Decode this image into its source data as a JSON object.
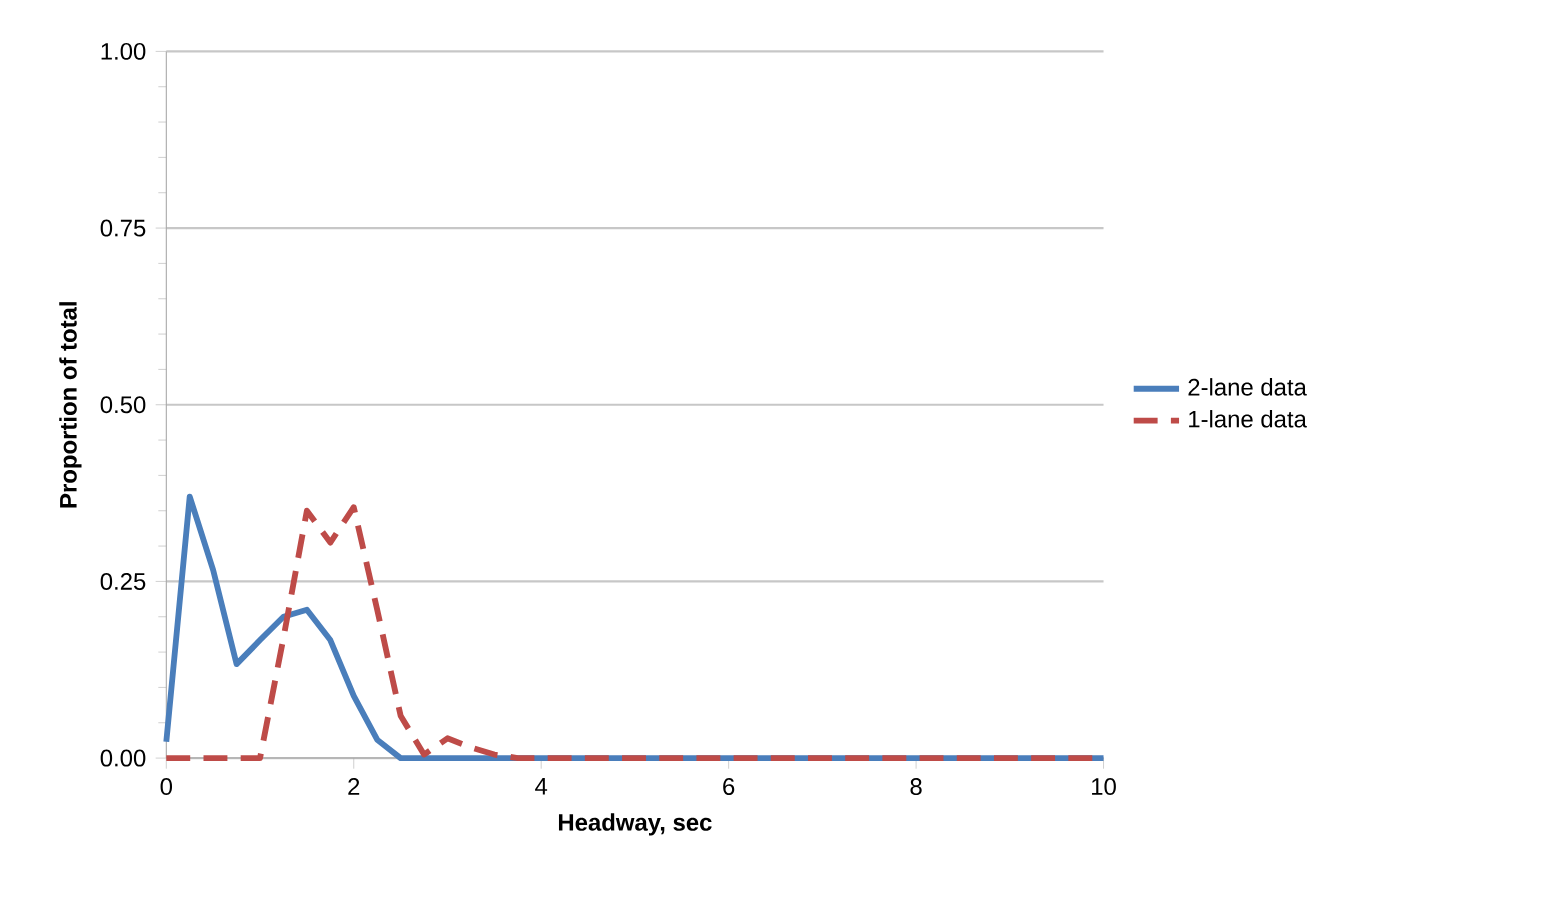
{
  "chart_data": {
    "type": "line",
    "xlabel": "Headway, sec",
    "ylabel": "Proportion of total",
    "xlim": [
      0,
      10
    ],
    "xticks": [
      0,
      2,
      4,
      6,
      8,
      10
    ],
    "ylim": [
      0,
      1
    ],
    "yticks": [
      {
        "value": 0,
        "label": "0.00"
      },
      {
        "value": 0.25,
        "label": "0.25"
      },
      {
        "value": 0.5,
        "label": "0.50"
      },
      {
        "value": 0.75,
        "label": "0.75"
      },
      {
        "value": 1,
        "label": "1.00"
      }
    ],
    "grid": "y",
    "legend": "right",
    "series": [
      {
        "name": "2-lane data",
        "color": "#4a7ebb",
        "line_style": "solid",
        "x": [
          0,
          0.25,
          0.5,
          0.75,
          1,
          1.25,
          1.5,
          1.75,
          2,
          2.25,
          2.5,
          2.75,
          3,
          3.25,
          3.5,
          3.75,
          4,
          4.25,
          4.5,
          4.75,
          5,
          5.25,
          5.5,
          5.75,
          6,
          6.25,
          6.5,
          6.75,
          7,
          7.25,
          7.5,
          7.75,
          8,
          8.25,
          8.5,
          8.75,
          9,
          9.25,
          9.5,
          9.75,
          10
        ],
        "values": [
          0.023,
          0.37,
          0.266,
          0.133,
          0.167,
          0.2,
          0.21,
          0.167,
          0.088,
          0.026,
          0,
          0,
          0,
          0,
          0,
          0,
          0,
          0,
          0,
          0,
          0,
          0,
          0,
          0,
          0,
          0,
          0,
          0,
          0,
          0,
          0,
          0,
          0,
          0,
          0,
          0,
          0,
          0,
          0,
          0,
          0
        ]
      },
      {
        "name": "1-lane data",
        "color": "#be4b48",
        "line_style": "dashed",
        "x": [
          0,
          0.25,
          0.5,
          0.75,
          1,
          1.25,
          1.5,
          1.75,
          2,
          2.25,
          2.5,
          2.75,
          3,
          3.25,
          3.5,
          3.75,
          4,
          4.25,
          4.5,
          4.75,
          5,
          5.25,
          5.5,
          5.75,
          6,
          6.25,
          6.5,
          6.75,
          7,
          7.25,
          7.5,
          7.75,
          8,
          8.25,
          8.5,
          8.75,
          9,
          9.25,
          9.5,
          9.75,
          10
        ],
        "values": [
          0,
          0,
          0,
          0,
          0,
          0.17,
          0.35,
          0.305,
          0.355,
          0.21,
          0.06,
          0.005,
          0.028,
          0.015,
          0.005,
          0,
          0,
          0,
          0,
          0,
          0,
          0,
          0,
          0,
          0,
          0,
          0,
          0,
          0,
          0,
          0,
          0,
          0,
          0,
          0,
          0,
          0,
          0,
          0,
          0,
          0
        ]
      }
    ]
  }
}
